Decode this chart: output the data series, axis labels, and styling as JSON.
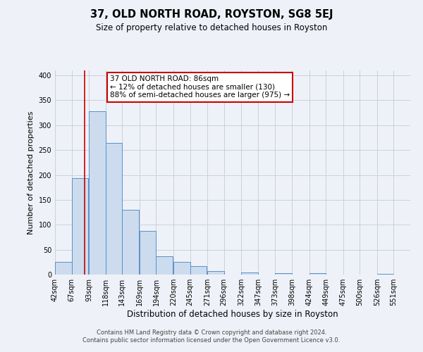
{
  "title": "37, OLD NORTH ROAD, ROYSTON, SG8 5EJ",
  "subtitle": "Size of property relative to detached houses in Royston",
  "xlabel": "Distribution of detached houses by size in Royston",
  "ylabel": "Number of detached properties",
  "bar_values": [
    25,
    193,
    328,
    265,
    130,
    87,
    37,
    25,
    17,
    7,
    0,
    4,
    0,
    3,
    0,
    3,
    0,
    0,
    0,
    2
  ],
  "bar_labels": [
    "42sqm",
    "67sqm",
    "93sqm",
    "118sqm",
    "143sqm",
    "169sqm",
    "194sqm",
    "220sqm",
    "245sqm",
    "271sqm",
    "296sqm",
    "322sqm",
    "347sqm",
    "373sqm",
    "398sqm",
    "424sqm",
    "449sqm",
    "475sqm",
    "500sqm",
    "526sqm",
    "551sqm"
  ],
  "bar_color": "#ccdcee",
  "bar_edge_color": "#5b8fc9",
  "ylim": [
    0,
    410
  ],
  "yticks": [
    0,
    50,
    100,
    150,
    200,
    250,
    300,
    350,
    400
  ],
  "property_line_x": 86,
  "property_line_color": "#cc0000",
  "annotation_title": "37 OLD NORTH ROAD: 86sqm",
  "annotation_line1": "← 12% of detached houses are smaller (130)",
  "annotation_line2": "88% of semi-detached houses are larger (975) →",
  "annotation_box_color": "#ffffff",
  "annotation_border_color": "#cc0000",
  "footer1": "Contains HM Land Registry data © Crown copyright and database right 2024.",
  "footer2": "Contains public sector information licensed under the Open Government Licence v3.0.",
  "background_color": "#eef2f8",
  "plot_background_color": "#eef2f8",
  "grid_color": "#c8d0de"
}
